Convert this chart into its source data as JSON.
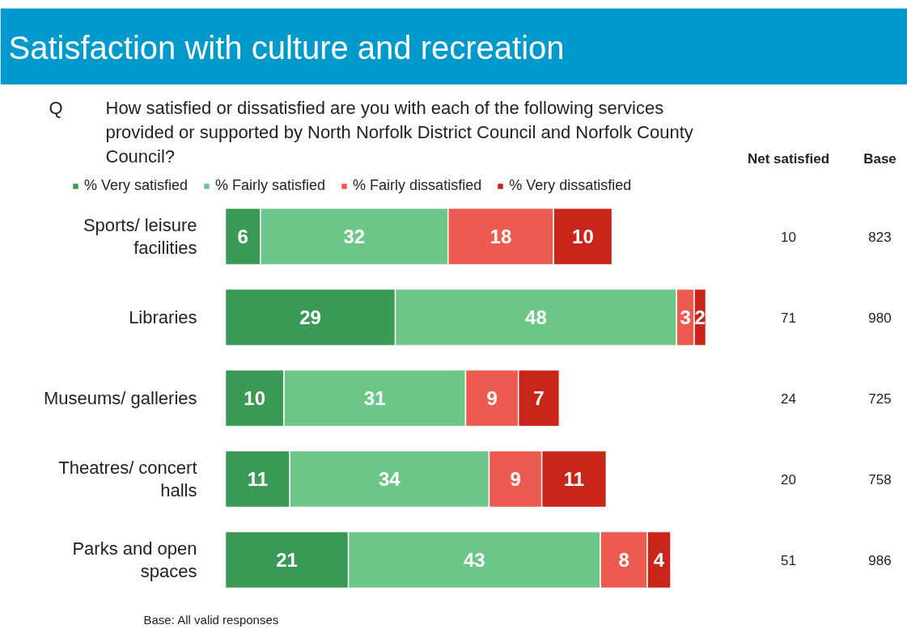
{
  "chart_data": {
    "type": "bar",
    "orientation": "horizontal",
    "stacked": true,
    "data_labels": true,
    "legend": "top",
    "title": "Satisfaction with culture and recreation",
    "subtitle": "Q How satisfied or dissatisfied are you with each of the following services provided or supported by North Norfolk District Council and Norfolk County Council?",
    "categories": [
      "Sports/ leisure facilities",
      "Libraries",
      "Museums/ galleries",
      "Theatres/ concert halls",
      "Parks and open spaces"
    ],
    "series": [
      {
        "name": "% Very satisfied",
        "color": "#3a9a55",
        "values": [
          6,
          29,
          10,
          11,
          21
        ]
      },
      {
        "name": "% Fairly satisfied",
        "color": "#6cc687",
        "values": [
          32,
          48,
          31,
          34,
          43
        ]
      },
      {
        "name": "% Fairly dissatisfied",
        "color": "#ec5a50",
        "values": [
          18,
          3,
          9,
          9,
          8
        ]
      },
      {
        "name": "% Very dissatisfied",
        "color": "#c8261a",
        "values": [
          10,
          2,
          7,
          11,
          4
        ]
      }
    ],
    "annotations": [
      "Base: All valid responses",
      "Net satisfied",
      "Base",
      "10",
      "823",
      "71",
      "980",
      "24",
      "725",
      "20",
      "758",
      "51",
      "986"
    ]
  }
}
